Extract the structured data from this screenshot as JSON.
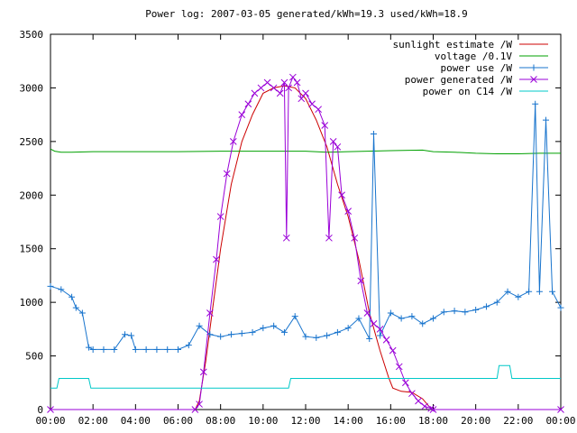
{
  "chart_data": {
    "type": "line",
    "title": "Power log: 2007-03-05 generated/kWh=19.3 used/kWh=18.9",
    "xlabel": "",
    "ylabel": "",
    "xlim": [
      0,
      24
    ],
    "ylim": [
      0,
      3500
    ],
    "x_tick_labels": [
      "00:00",
      "02:00",
      "04:00",
      "06:00",
      "08:00",
      "10:00",
      "12:00",
      "14:00",
      "16:00",
      "18:00",
      "20:00",
      "22:00",
      "00:00"
    ],
    "y_tick_labels": [
      "0",
      "500",
      "1000",
      "1500",
      "2000",
      "2500",
      "3000",
      "3500"
    ],
    "legend_position": "top-right",
    "series": [
      {
        "name": "sunlight estimate /W",
        "color": "#cc0000",
        "marker": "none",
        "x": [
          0,
          6.8,
          7.0,
          7.3,
          7.6,
          8.0,
          8.5,
          9.0,
          9.5,
          10.0,
          10.5,
          11.0,
          11.5,
          12.0,
          12.5,
          13.0,
          13.5,
          14.0,
          14.5,
          15.0,
          15.5,
          15.9,
          16.1,
          16.5,
          17.0,
          17.5,
          17.8,
          18.0,
          24.0
        ],
        "y": [
          0,
          0,
          80,
          450,
          900,
          1500,
          2100,
          2500,
          2750,
          2950,
          3000,
          3020,
          3000,
          2900,
          2700,
          2450,
          2100,
          1800,
          1400,
          900,
          550,
          300,
          200,
          170,
          160,
          100,
          30,
          0,
          0
        ]
      },
      {
        "name": "voltage /0.1V",
        "color": "#00a000",
        "marker": "none",
        "x": [
          0,
          0.2,
          0.5,
          1.0,
          2.0,
          4.0,
          6.0,
          8.0,
          10.0,
          12.0,
          13.0,
          14.0,
          16.0,
          17.5,
          18.0,
          19.0,
          20.0,
          21.0,
          22.0,
          23.0,
          24.0
        ],
        "y": [
          2430,
          2410,
          2400,
          2400,
          2405,
          2405,
          2405,
          2410,
          2410,
          2410,
          2400,
          2405,
          2415,
          2420,
          2405,
          2400,
          2390,
          2385,
          2385,
          2390,
          2390
        ]
      },
      {
        "name": "power use /W",
        "color": "#1874cd",
        "marker": "plus",
        "x": [
          0,
          0.5,
          1.0,
          1.2,
          1.5,
          1.8,
          2.0,
          2.5,
          3.0,
          3.5,
          3.8,
          4.0,
          4.5,
          5.0,
          5.5,
          6.0,
          6.5,
          7.0,
          7.5,
          8.0,
          8.5,
          9.0,
          9.5,
          10.0,
          10.5,
          11.0,
          11.5,
          12.0,
          12.5,
          13.0,
          13.5,
          14.0,
          14.5,
          15.0,
          15.2,
          15.5,
          16.0,
          16.5,
          17.0,
          17.5,
          18.0,
          18.5,
          19.0,
          19.5,
          20.0,
          20.5,
          21.0,
          21.5,
          22.0,
          22.5,
          22.8,
          23.0,
          23.3,
          23.6,
          24.0
        ],
        "y": [
          1150,
          1120,
          1050,
          950,
          900,
          580,
          560,
          560,
          560,
          700,
          690,
          560,
          560,
          560,
          560,
          560,
          600,
          780,
          700,
          680,
          700,
          710,
          720,
          760,
          780,
          720,
          870,
          680,
          670,
          690,
          720,
          760,
          850,
          660,
          2570,
          690,
          900,
          850,
          870,
          800,
          850,
          910,
          920,
          910,
          930,
          960,
          1000,
          1100,
          1050,
          1100,
          2850,
          1100,
          2700,
          1100,
          950
        ]
      },
      {
        "name": "power generated /W",
        "color": "#9a00d8",
        "marker": "cross",
        "x": [
          0,
          6.8,
          7.0,
          7.2,
          7.5,
          7.8,
          8.0,
          8.3,
          8.6,
          9.0,
          9.3,
          9.6,
          9.9,
          10.2,
          10.5,
          10.8,
          11.0,
          11.1,
          11.2,
          11.4,
          11.6,
          11.8,
          12.0,
          12.3,
          12.6,
          12.9,
          13.1,
          13.3,
          13.5,
          13.7,
          14.0,
          14.3,
          14.6,
          14.9,
          15.2,
          15.5,
          15.8,
          16.1,
          16.4,
          16.7,
          17.0,
          17.3,
          17.6,
          17.9,
          18.0,
          24.0
        ],
        "y": [
          0,
          0,
          50,
          350,
          900,
          1400,
          1800,
          2200,
          2500,
          2750,
          2850,
          2950,
          3000,
          3050,
          3000,
          2950,
          3050,
          1600,
          3000,
          3100,
          3050,
          2900,
          2950,
          2850,
          2800,
          2650,
          1600,
          2500,
          2450,
          2000,
          1850,
          1600,
          1200,
          900,
          800,
          750,
          650,
          550,
          400,
          250,
          150,
          80,
          30,
          10,
          0,
          0
        ]
      },
      {
        "name": "power on C14 /W",
        "color": "#00c8c8",
        "marker": "none",
        "x": [
          0,
          0.3,
          0.4,
          1.8,
          1.9,
          11.2,
          11.3,
          21.0,
          21.1,
          21.6,
          21.7,
          24.0
        ],
        "y": [
          200,
          200,
          290,
          290,
          200,
          200,
          290,
          290,
          410,
          410,
          290,
          290
        ]
      }
    ]
  }
}
